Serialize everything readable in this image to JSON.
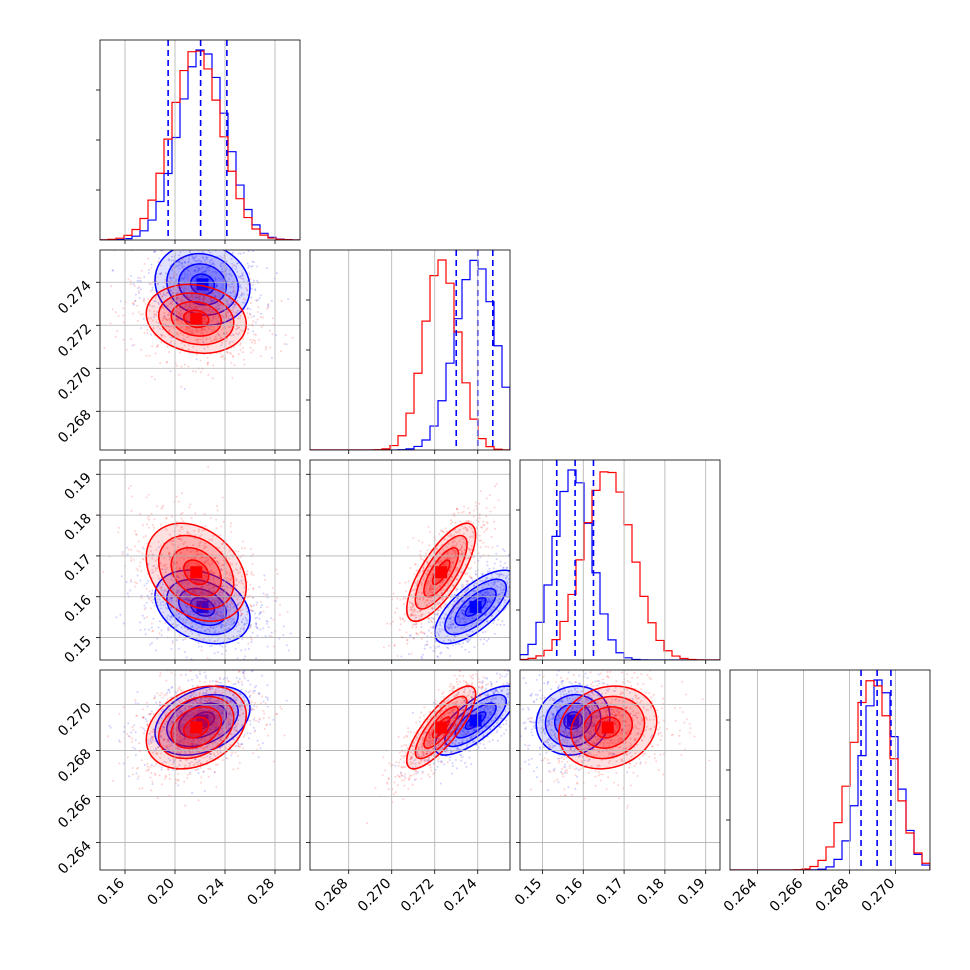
{
  "chart_data": {
    "type": "corner",
    "colors": {
      "blue": "#0000ff",
      "red": "#ff0000"
    },
    "grid": true,
    "parameters": [
      {
        "range": [
          0.14,
          0.3
        ],
        "ticks": [
          "0.16",
          "0.20",
          "0.24",
          "0.28"
        ],
        "tick_values": [
          0.16,
          0.2,
          0.24,
          0.28
        ]
      },
      {
        "range": [
          0.2662,
          0.2755
        ],
        "ticks": [
          "0.268",
          "0.270",
          "0.272",
          "0.274"
        ],
        "tick_values": [
          0.268,
          0.27,
          0.272,
          0.274
        ]
      },
      {
        "range": [
          0.1445,
          0.1935
        ],
        "ticks": [
          "0.15",
          "0.16",
          "0.17",
          "0.18",
          "0.19"
        ],
        "tick_values": [
          0.15,
          0.16,
          0.17,
          0.18,
          0.19
        ]
      },
      {
        "range": [
          0.2628,
          0.2715
        ],
        "ticks": [
          "0.264",
          "0.266",
          "0.268",
          "0.270"
        ],
        "tick_values": [
          0.264,
          0.266,
          0.268,
          0.27
        ]
      }
    ],
    "series": [
      {
        "color": "blue",
        "means": [
          0.222,
          0.2739,
          0.1575,
          0.2693
        ],
        "sigmas": [
          0.019,
          0.00095,
          0.0045,
          0.00075
        ]
      },
      {
        "color": "red",
        "means": [
          0.217,
          0.2723,
          0.166,
          0.269
        ],
        "sigmas": [
          0.02,
          0.0008,
          0.006,
          0.0009
        ]
      }
    ],
    "quantile_lines": [
      [
        0.1945,
        0.2205,
        0.2415
      ],
      [
        0.273,
        0.274,
        0.2747
      ],
      [
        0.1535,
        0.158,
        0.1625
      ],
      [
        0.2685,
        0.2692,
        0.2698
      ]
    ],
    "correlations": {
      "blue": {
        "1-0": -0.1,
        "2-0": -0.3,
        "2-1": 0.7,
        "3-0": 0.35,
        "3-1": 0.75,
        "3-2": 0.1
      },
      "red": {
        "1-0": -0.15,
        "2-0": -0.3,
        "2-1": 0.75,
        "3-0": 0.3,
        "3-1": 0.8,
        "3-2": 0.15
      }
    }
  }
}
